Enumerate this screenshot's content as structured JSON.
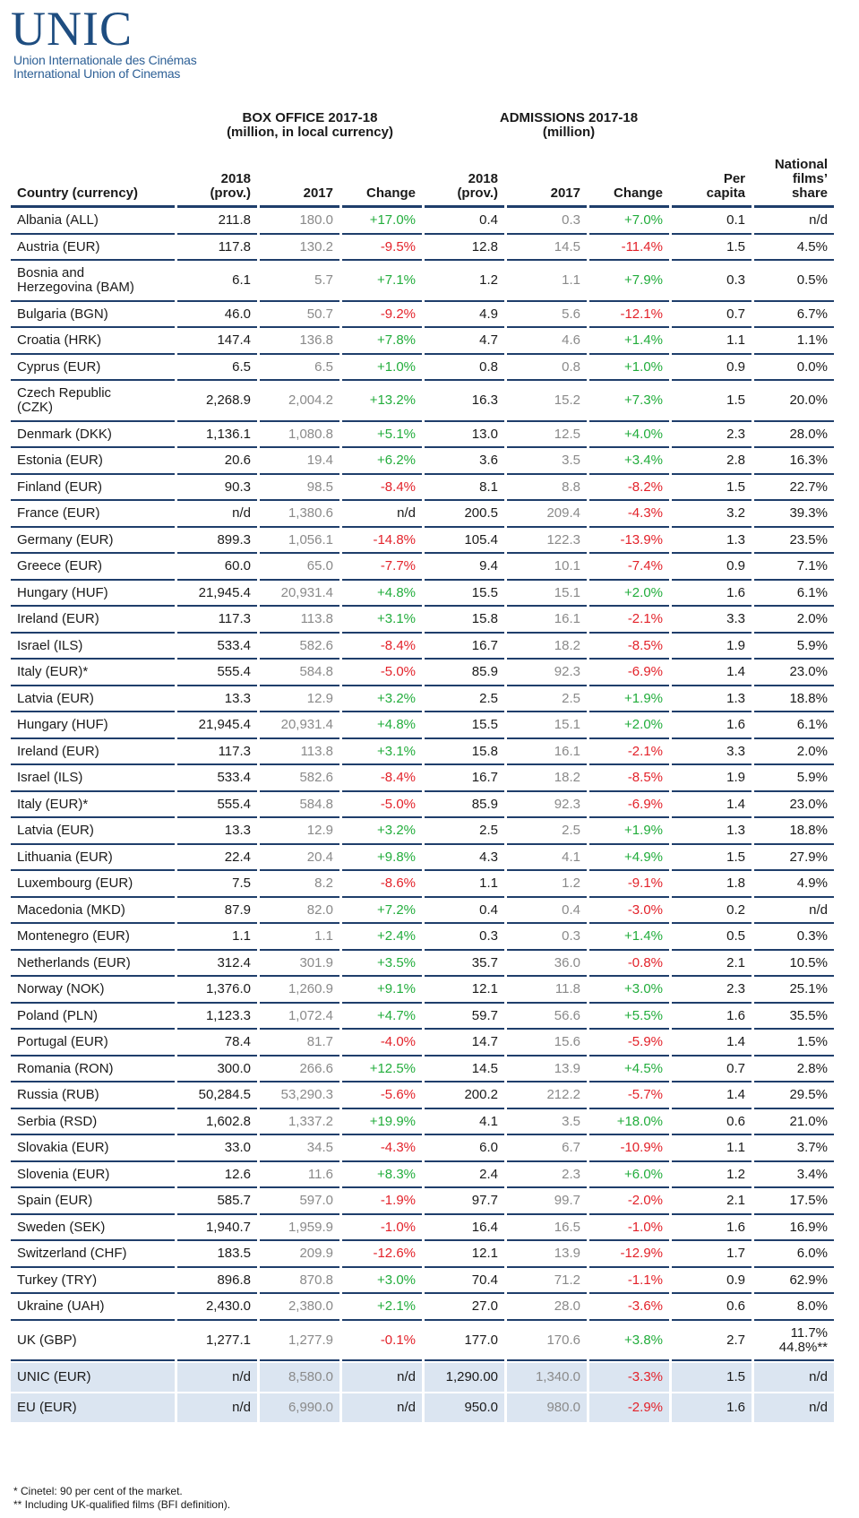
{
  "header": {
    "logo": "UNIC",
    "subtitle": [
      "Union Internationale des Cinémas",
      "International Union of Cinemas"
    ]
  },
  "table": {
    "groups": [
      "BOX OFFICE 2017-18\n(million, in local currency)",
      "ADMISSIONS 2017-18\n(million)"
    ],
    "columns": [
      "Country (currency)",
      "2018\n(prov.)",
      "2017",
      "Change",
      "2018\n(prov.)",
      "2017",
      "Change",
      "Per\ncapita",
      "National\nfilms’\nshare"
    ],
    "rows": [
      [
        "Albania (ALL)",
        "211.8",
        "180.0",
        "+17.0%",
        "0.4",
        "0.3",
        "+7.0%",
        "0.1",
        "n/d"
      ],
      [
        "Austria (EUR)",
        "117.8",
        "130.2",
        "-9.5%",
        "12.8",
        "14.5",
        "-11.4%",
        "1.5",
        "4.5%"
      ],
      [
        "Bosnia and\nHerzegovina (BAM)",
        "6.1",
        "5.7",
        "+7.1%",
        "1.2",
        "1.1",
        "+7.9%",
        "0.3",
        "0.5%"
      ],
      [
        "Bulgaria (BGN)",
        "46.0",
        "50.7",
        "-9.2%",
        "4.9",
        "5.6",
        "-12.1%",
        "0.7",
        "6.7%"
      ],
      [
        "Croatia (HRK)",
        "147.4",
        "136.8",
        "+7.8%",
        "4.7",
        "4.6",
        "+1.4%",
        "1.1",
        "1.1%"
      ],
      [
        "Cyprus (EUR)",
        "6.5",
        "6.5",
        "+1.0%",
        "0.8",
        "0.8",
        "+1.0%",
        "0.9",
        "0.0%"
      ],
      [
        "Czech Republic\n(CZK)",
        "2,268.9",
        "2,004.2",
        "+13.2%",
        "16.3",
        "15.2",
        "+7.3%",
        "1.5",
        "20.0%"
      ],
      [
        "Denmark (DKK)",
        "1,136.1",
        "1,080.8",
        "+5.1%",
        "13.0",
        "12.5",
        "+4.0%",
        "2.3",
        "28.0%"
      ],
      [
        "Estonia (EUR)",
        "20.6",
        "19.4",
        "+6.2%",
        "3.6",
        "3.5",
        "+3.4%",
        "2.8",
        "16.3%"
      ],
      [
        "Finland (EUR)",
        "90.3",
        "98.5",
        "-8.4%",
        "8.1",
        "8.8",
        "-8.2%",
        "1.5",
        "22.7%"
      ],
      [
        "France (EUR)",
        "n/d",
        "1,380.6",
        "n/d",
        "200.5",
        "209.4",
        "-4.3%",
        "3.2",
        "39.3%"
      ],
      [
        "Germany (EUR)",
        "899.3",
        "1,056.1",
        "-14.8%",
        "105.4",
        "122.3",
        "-13.9%",
        "1.3",
        "23.5%"
      ],
      [
        "Greece (EUR)",
        "60.0",
        "65.0",
        "-7.7%",
        "9.4",
        "10.1",
        "-7.4%",
        "0.9",
        "7.1%"
      ],
      [
        "Hungary (HUF)",
        "21,945.4",
        "20,931.4",
        "+4.8%",
        "15.5",
        "15.1",
        "+2.0%",
        "1.6",
        "6.1%"
      ],
      [
        "Ireland (EUR)",
        "117.3",
        "113.8",
        "+3.1%",
        "15.8",
        "16.1",
        "-2.1%",
        "3.3",
        "2.0%"
      ],
      [
        "Israel (ILS)",
        "533.4",
        "582.6",
        "-8.4%",
        "16.7",
        "18.2",
        "-8.5%",
        "1.9",
        "5.9%"
      ],
      [
        "Italy (EUR)*",
        "555.4",
        "584.8",
        "-5.0%",
        "85.9",
        "92.3",
        "-6.9%",
        "1.4",
        "23.0%"
      ],
      [
        "Latvia (EUR)",
        "13.3",
        "12.9",
        "+3.2%",
        "2.5",
        "2.5",
        "+1.9%",
        "1.3",
        "18.8%"
      ],
      [
        "Hungary (HUF)",
        "21,945.4",
        "20,931.4",
        "+4.8%",
        "15.5",
        "15.1",
        "+2.0%",
        "1.6",
        "6.1%"
      ],
      [
        "Ireland (EUR)",
        "117.3",
        "113.8",
        "+3.1%",
        "15.8",
        "16.1",
        "-2.1%",
        "3.3",
        "2.0%"
      ],
      [
        "Israel (ILS)",
        "533.4",
        "582.6",
        "-8.4%",
        "16.7",
        "18.2",
        "-8.5%",
        "1.9",
        "5.9%"
      ],
      [
        "Italy (EUR)*",
        "555.4",
        "584.8",
        "-5.0%",
        "85.9",
        "92.3",
        "-6.9%",
        "1.4",
        "23.0%"
      ],
      [
        "Latvia (EUR)",
        "13.3",
        "12.9",
        "+3.2%",
        "2.5",
        "2.5",
        "+1.9%",
        "1.3",
        "18.8%"
      ],
      [
        "Lithuania (EUR)",
        "22.4",
        "20.4",
        "+9.8%",
        "4.3",
        "4.1",
        "+4.9%",
        "1.5",
        "27.9%"
      ],
      [
        "Luxembourg (EUR)",
        "7.5",
        "8.2",
        "-8.6%",
        "1.1",
        "1.2",
        "-9.1%",
        "1.8",
        "4.9%"
      ],
      [
        "Macedonia (MKD)",
        "87.9",
        "82.0",
        "+7.2%",
        "0.4",
        "0.4",
        "-3.0%",
        "0.2",
        "n/d"
      ],
      [
        "Montenegro (EUR)",
        "1.1",
        "1.1",
        "+2.4%",
        "0.3",
        "0.3",
        "+1.4%",
        "0.5",
        "0.3%"
      ],
      [
        "Netherlands (EUR)",
        "312.4",
        "301.9",
        "+3.5%",
        "35.7",
        "36.0",
        "-0.8%",
        "2.1",
        "10.5%"
      ],
      [
        "Norway (NOK)",
        "1,376.0",
        "1,260.9",
        "+9.1%",
        "12.1",
        "11.8",
        "+3.0%",
        "2.3",
        "25.1%"
      ],
      [
        "Poland (PLN)",
        "1,123.3",
        "1,072.4",
        "+4.7%",
        "59.7",
        "56.6",
        "+5.5%",
        "1.6",
        "35.5%"
      ],
      [
        "Portugal (EUR)",
        "78.4",
        "81.7",
        "-4.0%",
        "14.7",
        "15.6",
        "-5.9%",
        "1.4",
        "1.5%"
      ],
      [
        "Romania (RON)",
        "300.0",
        "266.6",
        "+12.5%",
        "14.5",
        "13.9",
        "+4.5%",
        "0.7",
        "2.8%"
      ],
      [
        "Russia (RUB)",
        "50,284.5",
        "53,290.3",
        "-5.6%",
        "200.2",
        "212.2",
        "-5.7%",
        "1.4",
        "29.5%"
      ],
      [
        "Serbia (RSD)",
        "1,602.8",
        "1,337.2",
        "+19.9%",
        "4.1",
        "3.5",
        "+18.0%",
        "0.6",
        "21.0%"
      ],
      [
        "Slovakia (EUR)",
        "33.0",
        "34.5",
        "-4.3%",
        "6.0",
        "6.7",
        "-10.9%",
        "1.1",
        "3.7%"
      ],
      [
        "Slovenia (EUR)",
        "12.6",
        "11.6",
        "+8.3%",
        "2.4",
        "2.3",
        "+6.0%",
        "1.2",
        "3.4%"
      ],
      [
        "Spain (EUR)",
        "585.7",
        "597.0",
        "-1.9%",
        "97.7",
        "99.7",
        "-2.0%",
        "2.1",
        "17.5%"
      ],
      [
        "Sweden (SEK)",
        "1,940.7",
        "1,959.9",
        "-1.0%",
        "16.4",
        "16.5",
        "-1.0%",
        "1.6",
        "16.9%"
      ],
      [
        "Switzerland (CHF)",
        "183.5",
        "209.9",
        "-12.6%",
        "12.1",
        "13.9",
        "-12.9%",
        "1.7",
        "6.0%"
      ],
      [
        "Turkey (TRY)",
        "896.8",
        "870.8",
        "+3.0%",
        "70.4",
        "71.2",
        "-1.1%",
        "0.9",
        "62.9%"
      ],
      [
        "Ukraine (UAH)",
        "2,430.0",
        "2,380.0",
        "+2.1%",
        "27.0",
        "28.0",
        "-3.6%",
        "0.6",
        "8.0%"
      ],
      [
        "UK (GBP)",
        "1,277.1",
        "1,277.9",
        "-0.1%",
        "177.0",
        "170.6",
        "+3.8%",
        "2.7",
        "11.7%\n44.8%**"
      ]
    ],
    "totals": [
      [
        "UNIC (EUR)",
        "n/d",
        "8,580.0",
        "n/d",
        "1,290.00",
        "1,340.0",
        "-3.3%",
        "1.5",
        "n/d"
      ],
      [
        "EU (EUR)",
        "n/d",
        "6,990.0",
        "n/d",
        "950.0",
        "980.0",
        "-2.9%",
        "1.6",
        "n/d"
      ]
    ]
  },
  "footnotes": [
    "* Cinetel: 90 per cent of the market.",
    "** Including UK-qualified films (BFI definition)."
  ]
}
